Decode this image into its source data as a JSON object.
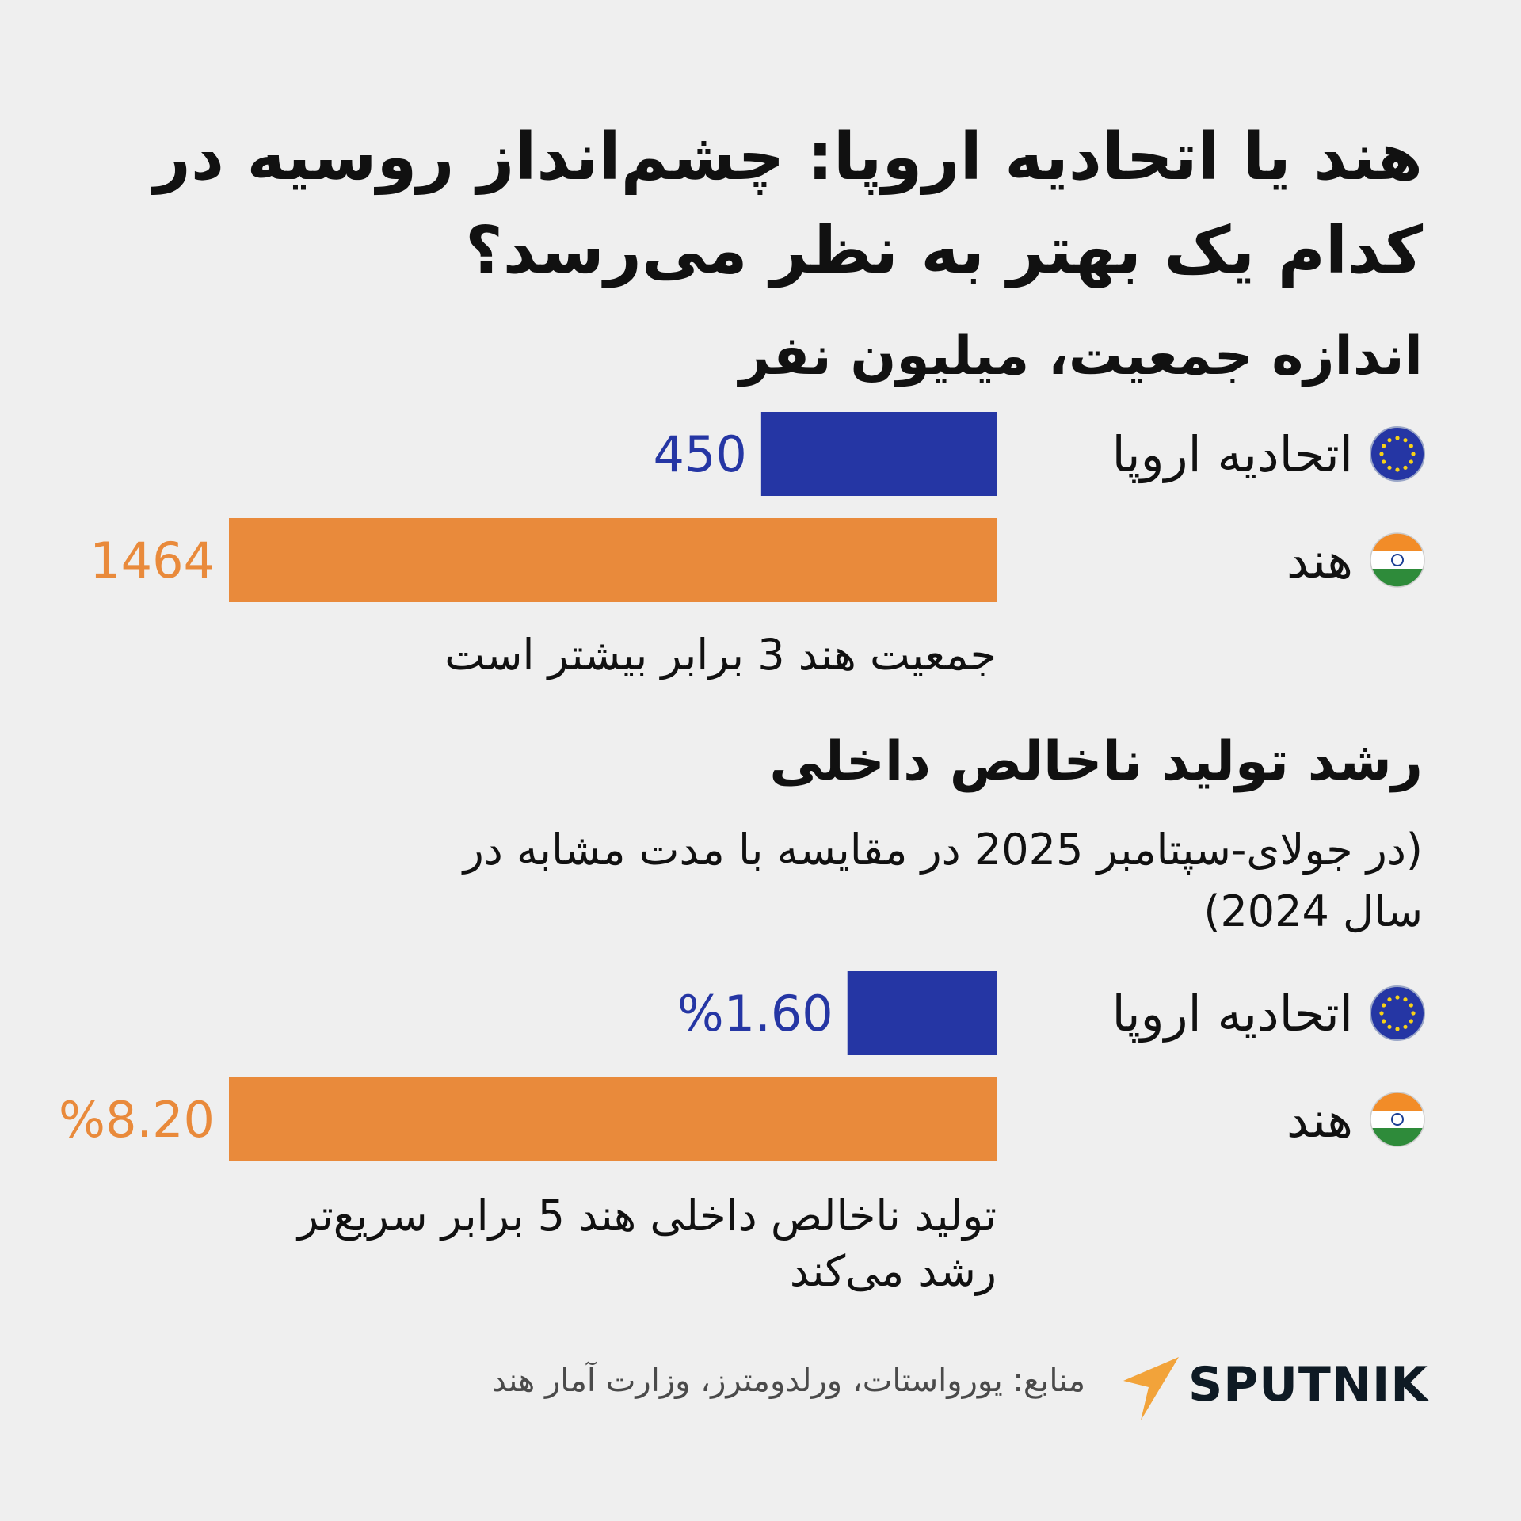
{
  "title": "هند یا اتحادیه اروپا: چشم‌انداز روسیه در کدام یک بهتر به نظر می‌رسد؟",
  "colors": {
    "eu": "#2536a4",
    "india": "#e98a3b",
    "background": "#efefef"
  },
  "chart_data": [
    {
      "type": "bar",
      "title": "اندازه جمعیت، میلیون نفر",
      "categories": [
        "اتحادیه اروپا",
        "هند"
      ],
      "values": [
        450,
        1464
      ],
      "value_labels": [
        "450",
        "1464"
      ],
      "icons": [
        "eu-flag-icon",
        "india-flag-icon"
      ],
      "note": "جمعیت هند 3 برابر بیشتر است"
    },
    {
      "type": "bar",
      "title": "رشد تولید ناخالص داخلی",
      "subtitle": "(در جولای-سپتامبر 2025 در مقایسه با مدت مشابه در سال 2024)",
      "categories": [
        "اتحادیه اروپا",
        "هند"
      ],
      "values": [
        1.6,
        8.2
      ],
      "value_labels": [
        "%1.60",
        "%8.20"
      ],
      "icons": [
        "eu-flag-icon",
        "india-flag-icon"
      ],
      "note": "تولید ناخالص داخلی هند 5 برابر سریع‌تر رشد می‌کند"
    }
  ],
  "footer": {
    "source": "منابع: یورواستات، ورلدومترز، وزارت آمار هند",
    "brand": "SPUTNIK"
  }
}
